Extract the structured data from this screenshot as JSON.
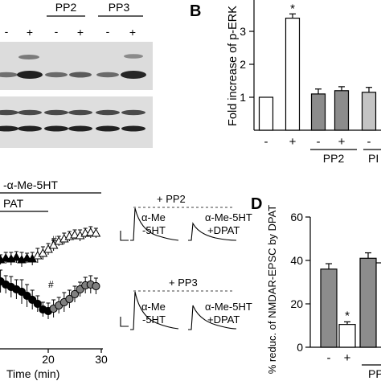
{
  "panel_a": {
    "labels": {
      "pp2": "PP2",
      "pp3": "PP3"
    },
    "signs": [
      "-",
      "+",
      "-",
      "+",
      "-",
      "+"
    ]
  },
  "panel_b": {
    "letter": "B",
    "signs": [
      "-",
      "+",
      "-",
      "+",
      "-"
    ],
    "groups": [
      "PP2",
      "PI"
    ]
  },
  "panel_c": {
    "drug": "-α-Me-5HT",
    "treatment": "PAT",
    "xlabel": "Time (min)",
    "xticks": [
      "20",
      "30"
    ],
    "hash_marks": [
      "#",
      "#"
    ],
    "inset_top": {
      "title": "+ PP2",
      "left_label_1": "α-Me",
      "left_label_2": "-5HT",
      "right_label_1": "α-Me-5HT",
      "right_label_2": "+DPAT"
    },
    "inset_bottom": {
      "title": "+ PP3",
      "left_label_1": "α-Me",
      "left_label_2": "-5HT",
      "right_label_1": "α-Me-5HT",
      "right_label_2": "+DPAT"
    }
  },
  "panel_d": {
    "letter": "D",
    "signs": [
      "-",
      "+"
    ],
    "groups": [
      "PP"
    ]
  },
  "chart_data": [
    {
      "type": "bar",
      "title": "",
      "ylabel": "Fold increase of p-ERK",
      "ylim": [
        0,
        4
      ],
      "yticks": [
        1,
        2,
        3
      ],
      "categories": [
        "-",
        "+",
        "-",
        "+",
        "-"
      ],
      "values": [
        1.0,
        3.4,
        1.1,
        1.2,
        1.15
      ],
      "errors": [
        0,
        0.13,
        0.15,
        0.12,
        0.15
      ],
      "colors": [
        "#ffffff",
        "#ffffff",
        "#8c8c8c",
        "#8c8c8c",
        "#c4c4c4"
      ],
      "significance": [
        "",
        "*",
        "",
        "",
        ""
      ],
      "grid": false
    },
    {
      "type": "bar",
      "title": "",
      "ylabel": "% reduc. of NMDAR-EPSC by DPAT",
      "ylim": [
        0,
        60
      ],
      "yticks": [
        "0",
        "20",
        "40",
        "60"
      ],
      "categories": [
        "-",
        "+",
        "-"
      ],
      "values": [
        36,
        10.5,
        41
      ],
      "errors": [
        2.5,
        1.2,
        2.5
      ],
      "colors": [
        "#8c8c8c",
        "#ffffff",
        "#8c8c8c"
      ],
      "significance": [
        "",
        "*",
        ""
      ],
      "grid": false
    },
    {
      "type": "scatter",
      "title": "",
      "xlabel": "Time (min)",
      "xlim": [
        10,
        30
      ],
      "series": [
        {
          "marker": "triangle",
          "x": [
            10,
            11,
            12,
            13,
            14,
            15,
            16,
            17,
            18,
            19,
            20,
            21,
            22,
            23,
            24,
            25,
            26,
            27,
            28,
            29
          ],
          "y": [
            322,
            323,
            321,
            322,
            320,
            323,
            321,
            322,
            318,
            315,
            310,
            305,
            300,
            297,
            294,
            292,
            293,
            290,
            289,
            290
          ],
          "err": [
            8,
            6,
            7,
            8,
            7,
            9,
            6,
            8,
            9,
            8,
            7,
            7,
            6,
            7,
            6,
            6,
            7,
            6,
            7,
            6
          ],
          "fill": [
            "#000",
            "#000",
            "#000",
            "#000",
            "#000",
            "#000",
            "#000",
            "#000",
            "#fff",
            "#fff",
            "#fff",
            "#fff",
            "#fff",
            "#fff",
            "#fff",
            "#fff",
            "#fff",
            "#fff",
            "#fff",
            "#fff"
          ]
        },
        {
          "marker": "circle",
          "x": [
            10,
            11,
            12,
            13,
            14,
            15,
            16,
            17,
            18,
            19,
            20,
            21,
            22,
            23,
            24,
            25,
            26,
            27,
            28,
            29
          ],
          "y": [
            345,
            350,
            354,
            357,
            360,
            363,
            368,
            373,
            378,
            385,
            387,
            384,
            380,
            376,
            372,
            366,
            360,
            355,
            354,
            356
          ],
          "err": [
            12,
            14,
            11,
            13,
            12,
            15,
            14,
            12,
            10,
            9,
            10,
            11,
            10,
            12,
            11,
            10,
            9,
            10,
            11,
            10
          ],
          "fill": [
            "#000",
            "#000",
            "#000",
            "#000",
            "#000",
            "#000",
            "#000",
            "#000",
            "#000",
            "#000",
            "#000",
            "#808080",
            "#808080",
            "#808080",
            "#808080",
            "#808080",
            "#808080",
            "#808080",
            "#808080",
            "#808080"
          ]
        }
      ]
    }
  ]
}
